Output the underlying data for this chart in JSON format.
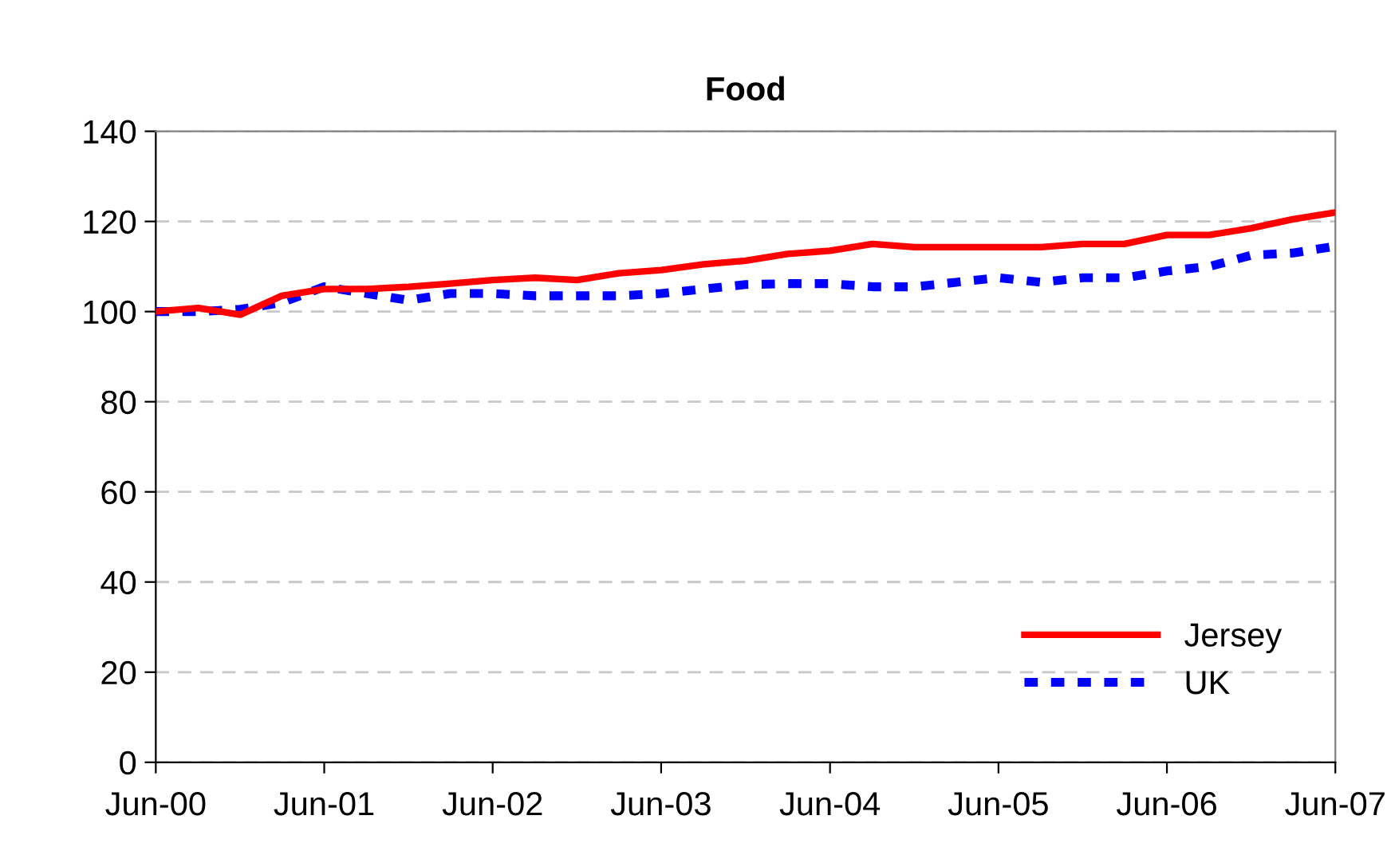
{
  "chart_data": {
    "type": "line",
    "title": "Food",
    "x": [
      "2000-06",
      "2000-09",
      "2000-12",
      "2001-03",
      "2001-06",
      "2001-09",
      "2001-12",
      "2002-03",
      "2002-06",
      "2002-09",
      "2002-12",
      "2003-03",
      "2003-06",
      "2003-09",
      "2003-12",
      "2004-03",
      "2004-06",
      "2004-09",
      "2004-12",
      "2005-03",
      "2005-06",
      "2005-09",
      "2005-12",
      "2006-03",
      "2006-06",
      "2006-09",
      "2006-12",
      "2007-03",
      "2007-06"
    ],
    "series": [
      {
        "name": "Jersey",
        "color": "#ff0000",
        "line_style": "solid",
        "values": [
          100,
          100.8,
          99.3,
          103.5,
          105,
          105,
          105.5,
          106.2,
          107,
          107.5,
          107,
          108.5,
          109.2,
          110.5,
          111.3,
          112.8,
          113.5,
          115,
          114.3,
          114.3,
          114.3,
          114.3,
          115,
          115,
          117,
          117,
          118.5,
          120.5,
          122
        ]
      },
      {
        "name": "UK",
        "color": "#0000ff",
        "line_style": "dotted",
        "values": [
          100,
          100,
          100.5,
          102,
          105.5,
          104,
          102.5,
          104,
          104,
          103.5,
          103.5,
          103.5,
          104,
          105,
          106,
          106.2,
          106.2,
          105.5,
          105.5,
          106.5,
          107.5,
          106.5,
          107.5,
          107.5,
          109,
          110,
          112.5,
          113,
          114.5
        ]
      }
    ],
    "xlim": [
      "2000-06",
      "2007-06"
    ],
    "xticks": [
      {
        "value": "2000-06",
        "label": "Jun-00"
      },
      {
        "value": "2001-06",
        "label": "Jun-01"
      },
      {
        "value": "2002-06",
        "label": "Jun-02"
      },
      {
        "value": "2003-06",
        "label": "Jun-03"
      },
      {
        "value": "2004-06",
        "label": "Jun-04"
      },
      {
        "value": "2005-06",
        "label": "Jun-05"
      },
      {
        "value": "2006-06",
        "label": "Jun-06"
      },
      {
        "value": "2007-06",
        "label": "Jun-07"
      }
    ],
    "ylim": [
      0,
      140
    ],
    "yticks": [
      0,
      20,
      40,
      60,
      80,
      100,
      120,
      140
    ],
    "grid": "y",
    "legend": "bottom right",
    "marker": "none"
  }
}
